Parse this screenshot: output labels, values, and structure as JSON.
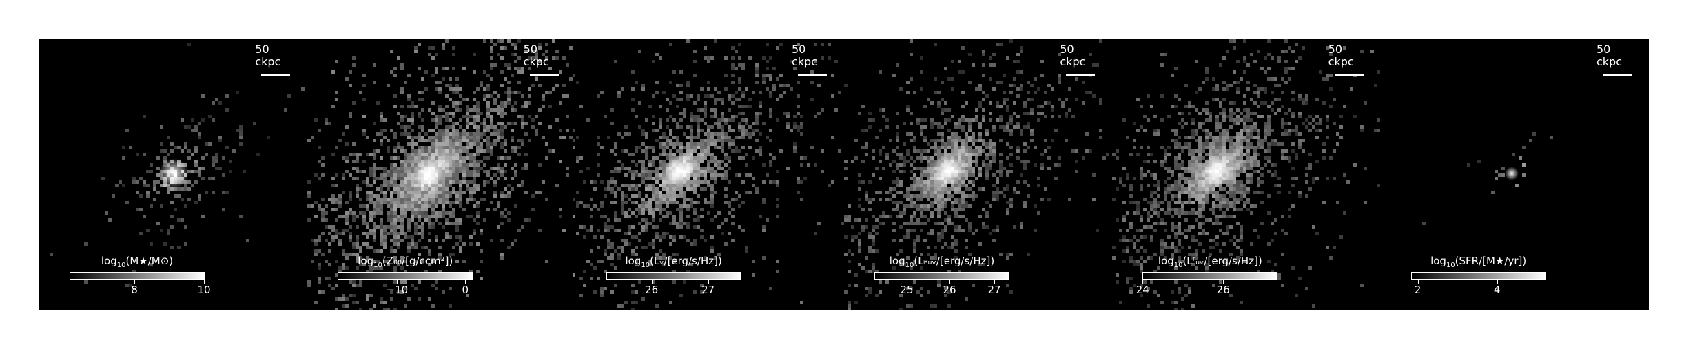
{
  "scale_label": "50 ckpc",
  "panels": [
    {
      "id": "mstar",
      "colorbar": {
        "label_pre": "log",
        "label_sub": "10",
        "label_post": "(M★/M⊙)",
        "ticks": [
          {
            "label": "8",
            "frac": 0.48
          },
          {
            "label": "10",
            "frac": 1.0
          }
        ]
      }
    },
    {
      "id": "metallicity",
      "colorbar": {
        "label_pre": "log",
        "label_sub": "10",
        "label_post": "(Z₀₈/[g/ccm²])",
        "ticks": [
          {
            "label": "−10",
            "frac": 0.44
          },
          {
            "label": "0",
            "frac": 0.95
          }
        ]
      }
    },
    {
      "id": "lum-v",
      "colorbar": {
        "label_pre": "log",
        "label_sub": "10",
        "label_post": "(Lᵥ/[erg/s/Hz])",
        "ticks": [
          {
            "label": "26",
            "frac": 0.34
          },
          {
            "label": "27",
            "frac": 0.76
          }
        ]
      }
    },
    {
      "id": "lum-nuv",
      "colorbar": {
        "label_pre": "log",
        "label_sub": "10",
        "label_post": "(Lₙᵤᵥ/[erg/s/Hz])",
        "ticks": [
          {
            "label": "25",
            "frac": 0.24
          },
          {
            "label": "26",
            "frac": 0.56
          },
          {
            "label": "27",
            "frac": 0.89
          }
        ]
      }
    },
    {
      "id": "lum-fuv",
      "colorbar": {
        "label_pre": "log",
        "label_sub": "10",
        "label_post": "(Lᶠᵤᵥ/[erg/s/Hz])",
        "ticks": [
          {
            "label": "24",
            "frac": 0.0
          },
          {
            "label": "26",
            "frac": 0.6
          }
        ]
      }
    },
    {
      "id": "sfr",
      "colorbar": {
        "label_pre": "log",
        "label_sub": "10",
        "label_post": "(SFR/[M★/yr])",
        "ticks": [
          {
            "label": "2",
            "frac": 0.05
          },
          {
            "label": "4",
            "frac": 0.64
          }
        ]
      }
    }
  ]
}
